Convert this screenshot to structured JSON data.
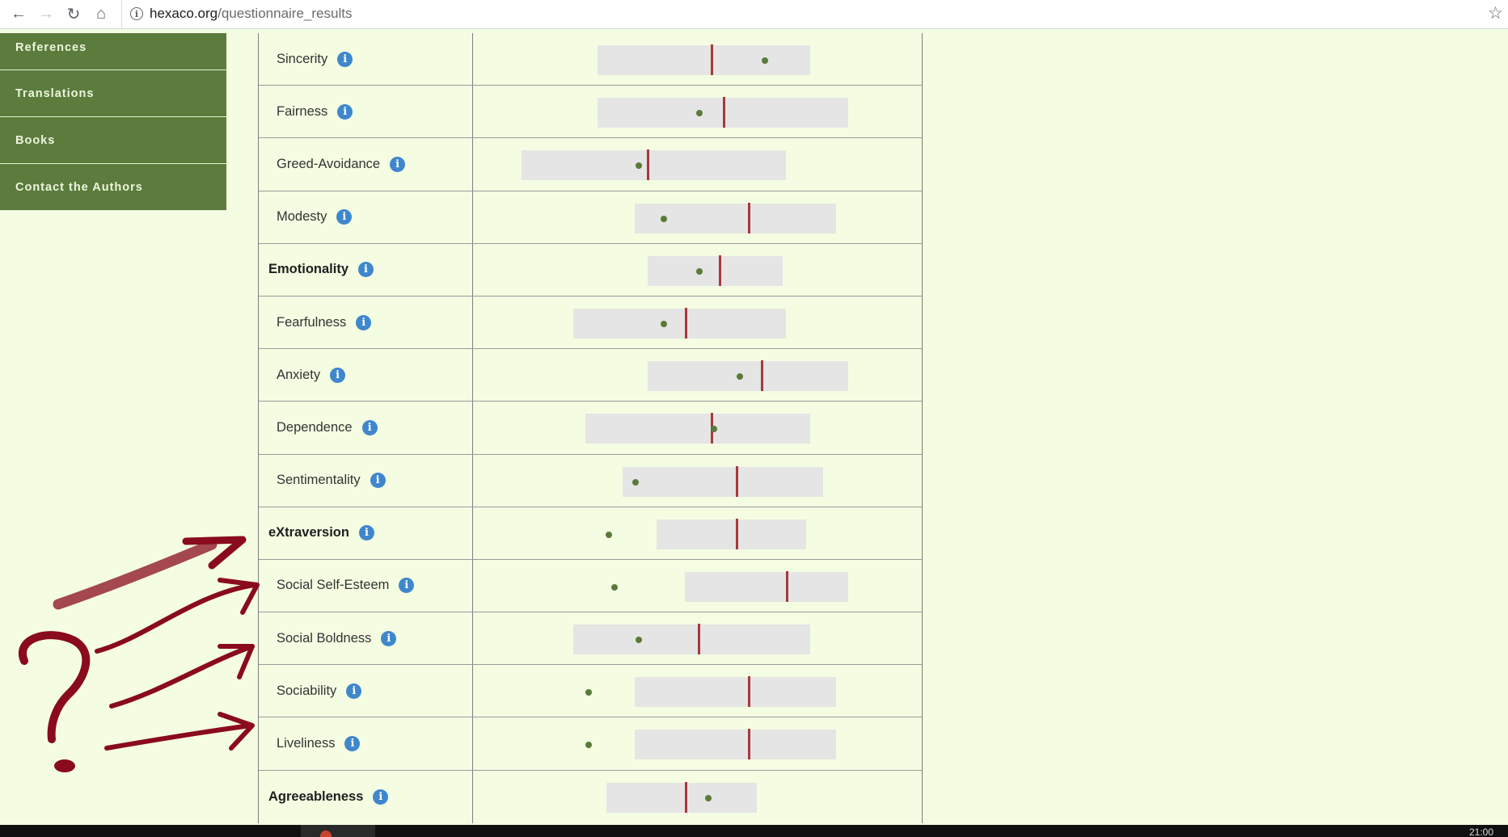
{
  "browser": {
    "url_host": "hexaco.org",
    "url_path": "/questionnaire_results"
  },
  "sidebar": {
    "items": [
      {
        "label": "References"
      },
      {
        "label": "Translations"
      },
      {
        "label": "Books"
      },
      {
        "label": "Contact the Authors"
      }
    ]
  },
  "results": {
    "scale_note": "range, median and score expressed as fractions of the plot column width",
    "rows": [
      {
        "label": "Sincerity",
        "domain": false,
        "range": [
          0.275,
          0.749
        ],
        "median": 0.53,
        "score": 0.648
      },
      {
        "label": "Fairness",
        "domain": false,
        "range": [
          0.275,
          0.834
        ],
        "median": 0.558,
        "score": 0.503
      },
      {
        "label": "Greed-Avoidance",
        "domain": false,
        "range": [
          0.106,
          0.695
        ],
        "median": 0.389,
        "score": 0.368
      },
      {
        "label": "Modesty",
        "domain": false,
        "range": [
          0.358,
          0.807
        ],
        "median": 0.613,
        "score": 0.424
      },
      {
        "label": "Emotionality",
        "domain": true,
        "range": [
          0.388,
          0.688
        ],
        "median": 0.548,
        "score": 0.502
      },
      {
        "label": "Fearfulness",
        "domain": false,
        "range": [
          0.221,
          0.695
        ],
        "median": 0.473,
        "score": 0.424
      },
      {
        "label": "Anxiety",
        "domain": false,
        "range": [
          0.388,
          0.834
        ],
        "median": 0.643,
        "score": 0.592
      },
      {
        "label": "Dependence",
        "domain": false,
        "range": [
          0.248,
          0.749
        ],
        "median": 0.53,
        "score": 0.536
      },
      {
        "label": "Sentimentality",
        "domain": false,
        "range": [
          0.331,
          0.778
        ],
        "median": 0.586,
        "score": 0.36
      },
      {
        "label": "eXtraversion",
        "domain": true,
        "range": [
          0.408,
          0.741
        ],
        "median": 0.586,
        "score": 0.3
      },
      {
        "label": "Social Self-Esteem",
        "domain": false,
        "range": [
          0.47,
          0.834
        ],
        "median": 0.698,
        "score": 0.314
      },
      {
        "label": "Social Boldness",
        "domain": false,
        "range": [
          0.221,
          0.749
        ],
        "median": 0.501,
        "score": 0.368
      },
      {
        "label": "Sociability",
        "domain": false,
        "range": [
          0.358,
          0.807
        ],
        "median": 0.613,
        "score": 0.256
      },
      {
        "label": "Liveliness",
        "domain": false,
        "range": [
          0.358,
          0.807
        ],
        "median": 0.613,
        "score": 0.256
      },
      {
        "label": "Agreeableness",
        "domain": true,
        "range": [
          0.296,
          0.631
        ],
        "median": 0.473,
        "score": 0.523
      }
    ]
  },
  "taskbar": {
    "clock": "21:00"
  },
  "colors": {
    "page_bg": "#f4fde2",
    "sidebar_bg": "#5b7c3c",
    "range_bar": "#e5e5e5",
    "median_line": "#a8383c",
    "score_dot": "#5a7a3a",
    "info_badge": "#3f87cc",
    "annotation": "#8a0a1e"
  }
}
